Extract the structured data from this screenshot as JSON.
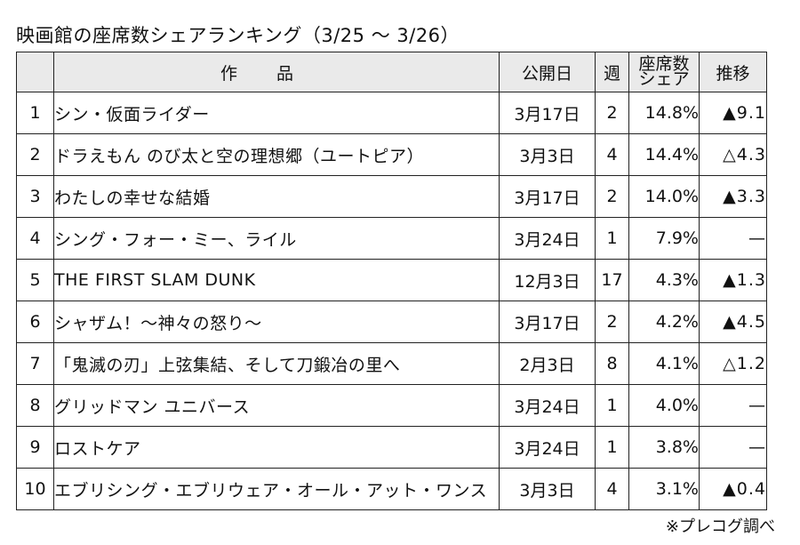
{
  "title": "映画館の座席数シェアランキング（3/25 ～ 3/26）",
  "headers": {
    "rank": "",
    "title": "作品",
    "release": "公開日",
    "week": "週",
    "share_line1": "座席数",
    "share_line2": "シェア",
    "trend": "推移"
  },
  "rows": [
    {
      "rank": "1",
      "title": "シン・仮面ライダー",
      "release": "3月17日",
      "week": "2",
      "share": "14.8%",
      "trend": "▲9.1"
    },
    {
      "rank": "2",
      "title": "ドラえもん のび太と空の理想郷（ユートピア）",
      "release": "3月3日",
      "week": "4",
      "share": "14.4%",
      "trend": "△4.3"
    },
    {
      "rank": "3",
      "title": "わたしの幸せな結婚",
      "release": "3月17日",
      "week": "2",
      "share": "14.0%",
      "trend": "▲3.3"
    },
    {
      "rank": "4",
      "title": "シング・フォー・ミー、ライル",
      "release": "3月24日",
      "week": "1",
      "share": "7.9%",
      "trend": "—"
    },
    {
      "rank": "5",
      "title": "THE FIRST SLAM DUNK",
      "release": "12月3日",
      "week": "17",
      "share": "4.3%",
      "trend": "▲1.3"
    },
    {
      "rank": "6",
      "title": "シャザム！～神々の怒り～",
      "release": "3月17日",
      "week": "2",
      "share": "4.2%",
      "trend": "▲4.5"
    },
    {
      "rank": "7",
      "title": "「鬼滅の刃」上弦集結、そして刀鍛冶の里へ",
      "release": "2月3日",
      "week": "8",
      "share": "4.1%",
      "trend": "△1.2"
    },
    {
      "rank": "8",
      "title": "グリッドマン ユニバース",
      "release": "3月24日",
      "week": "1",
      "share": "4.0%",
      "trend": "—"
    },
    {
      "rank": "9",
      "title": "ロストケア",
      "release": "3月24日",
      "week": "1",
      "share": "3.8%",
      "trend": "—"
    },
    {
      "rank": "10",
      "title": "エブリシング・エブリウェア・オール・アット・ワンス",
      "release": "3月3日",
      "week": "4",
      "share": "3.1%",
      "trend": "▲0.4"
    }
  ],
  "note": "※プレコグ調べ"
}
